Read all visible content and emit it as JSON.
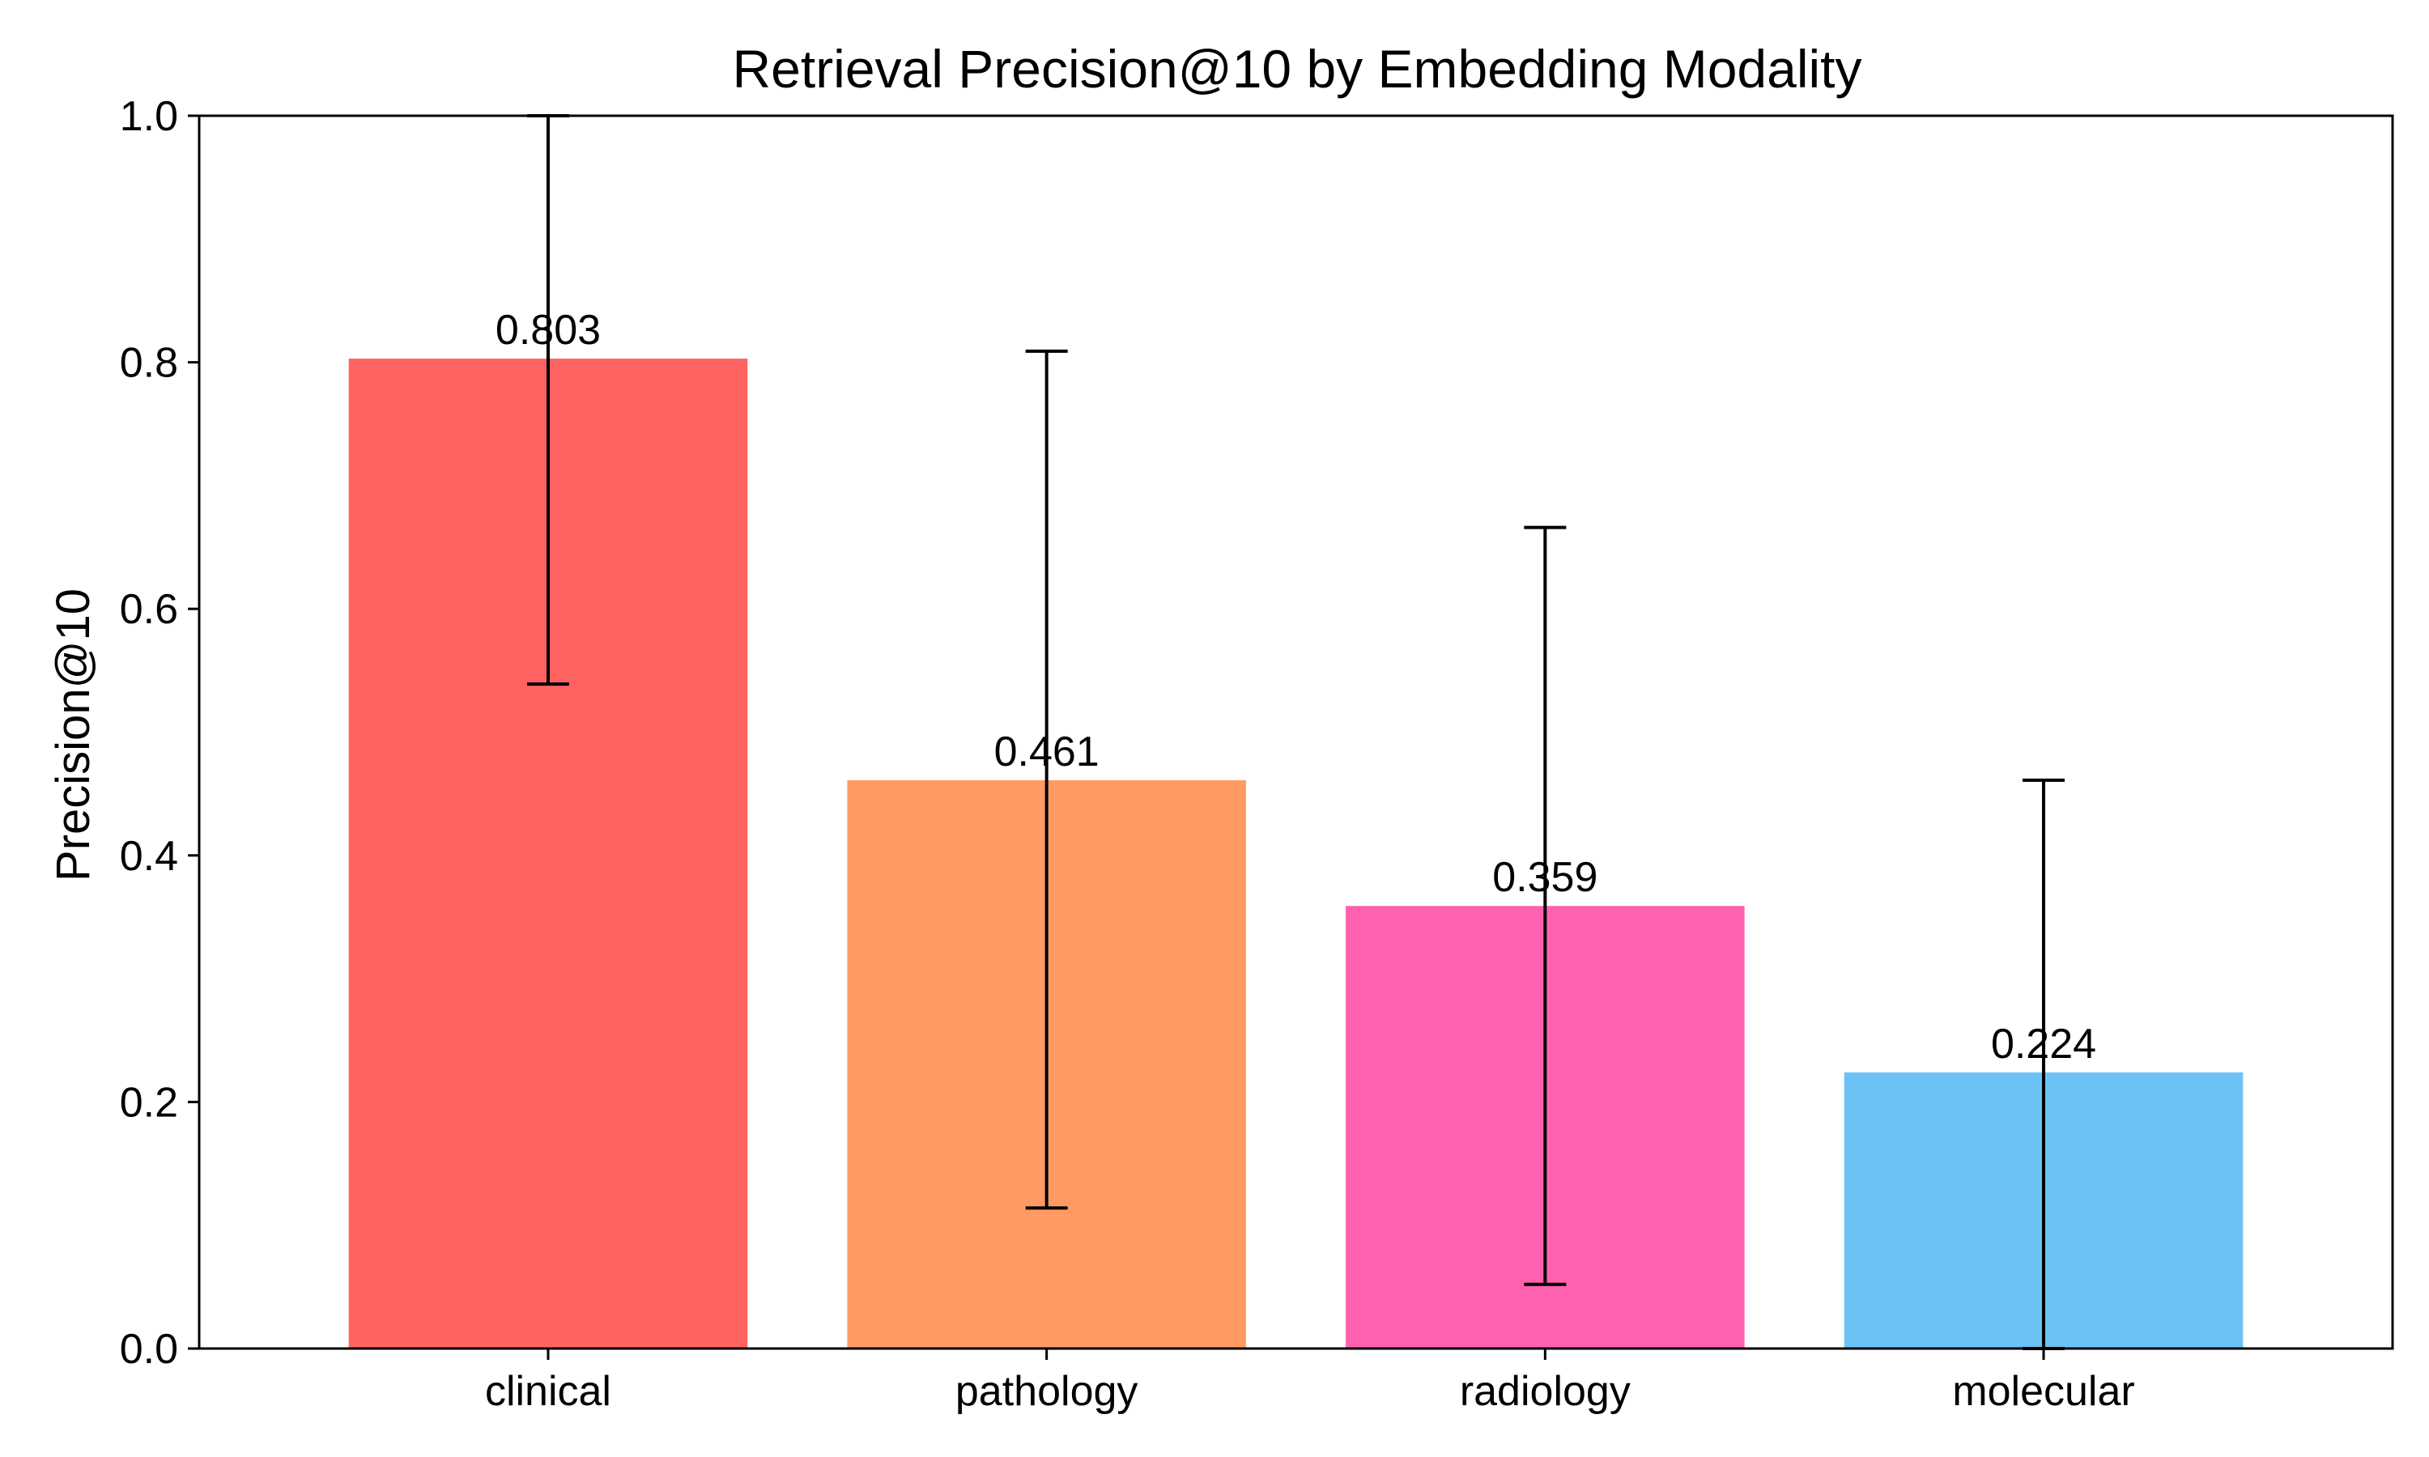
{
  "chart_data": {
    "type": "bar",
    "title": "Retrieval Precision@10 by Embedding Modality",
    "xlabel": "",
    "ylabel": "Precision@10",
    "categories": [
      "clinical",
      "pathology",
      "radiology",
      "molecular"
    ],
    "values": [
      0.803,
      0.461,
      0.359,
      0.224
    ],
    "value_labels": [
      "0.803",
      "0.461",
      "0.359",
      "0.224"
    ],
    "error_bars": [
      {
        "lower": 0.539,
        "upper": 1.0
      },
      {
        "lower": 0.114,
        "upper": 0.809
      },
      {
        "lower": 0.052,
        "upper": 0.666
      },
      {
        "lower": 0.0,
        "upper": 0.461
      }
    ],
    "colors": [
      "#ff6361",
      "#ff9b62",
      "#ff61b0",
      "#6cc2f5"
    ],
    "ylim": [
      0,
      1.0
    ],
    "yticks": [
      0.0,
      0.2,
      0.4,
      0.6,
      0.8,
      1.0
    ],
    "ytick_labels": [
      "0.0",
      "0.2",
      "0.4",
      "0.6",
      "0.8",
      "1.0"
    ],
    "grid": false,
    "legend": "none"
  }
}
